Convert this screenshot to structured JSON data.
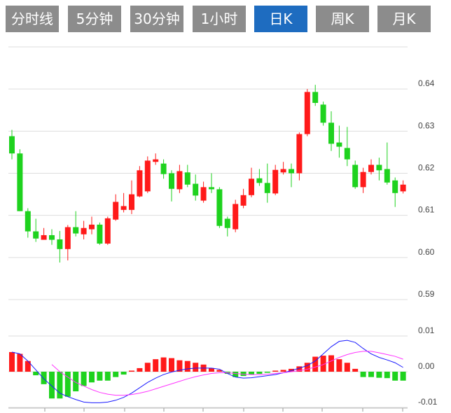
{
  "tabs": [
    "分时线",
    "5分钟",
    "30分钟",
    "1小时",
    "日K",
    "周K",
    "月K"
  ],
  "active_tab": 4,
  "chart_data": [
    {
      "type": "candlestick",
      "open": [
        0.6288,
        0.6247,
        0.611,
        0.6062,
        0.6042,
        0.6053,
        0.6043,
        0.602,
        0.6072,
        0.6055,
        0.6067,
        0.6078,
        0.6033,
        0.609,
        0.6113,
        0.6113,
        0.6145,
        0.6157,
        0.6227,
        0.6223,
        0.62,
        0.6162,
        0.6202,
        0.6175,
        0.6135,
        0.6167,
        0.6162,
        0.6092,
        0.6067,
        0.6123,
        0.6148,
        0.6188,
        0.6177,
        0.6152,
        0.6202,
        0.621,
        0.62,
        0.6293,
        0.6393,
        0.6363,
        0.632,
        0.6273,
        0.626,
        0.622,
        0.6167,
        0.6203,
        0.622,
        0.621,
        0.6183,
        0.6157
      ],
      "high": [
        0.6303,
        0.6257,
        0.6117,
        0.6092,
        0.607,
        0.6067,
        0.6063,
        0.6077,
        0.611,
        0.6087,
        0.6097,
        0.6083,
        0.6097,
        0.615,
        0.6153,
        0.6183,
        0.6217,
        0.624,
        0.6247,
        0.6233,
        0.6207,
        0.622,
        0.622,
        0.6197,
        0.618,
        0.62,
        0.6167,
        0.6097,
        0.6137,
        0.6163,
        0.6213,
        0.621,
        0.6223,
        0.622,
        0.6227,
        0.6223,
        0.6297,
        0.64,
        0.641,
        0.637,
        0.6347,
        0.6313,
        0.631,
        0.623,
        0.6213,
        0.6233,
        0.6237,
        0.6273,
        0.619,
        0.6183
      ],
      "low": [
        0.6233,
        0.611,
        0.6047,
        0.6037,
        0.6042,
        0.603,
        0.5988,
        0.5993,
        0.605,
        0.6043,
        0.6055,
        0.603,
        0.603,
        0.6087,
        0.6107,
        0.6103,
        0.6143,
        0.6153,
        0.622,
        0.6187,
        0.6133,
        0.6153,
        0.6167,
        0.6135,
        0.613,
        0.6153,
        0.607,
        0.605,
        0.606,
        0.6117,
        0.6143,
        0.617,
        0.613,
        0.6148,
        0.6197,
        0.6167,
        0.6183,
        0.6288,
        0.636,
        0.6313,
        0.6253,
        0.6237,
        0.6217,
        0.6163,
        0.6153,
        0.6197,
        0.6183,
        0.6173,
        0.612,
        0.6152
      ],
      "close": [
        0.6247,
        0.611,
        0.6062,
        0.6045,
        0.6053,
        0.6042,
        0.602,
        0.6072,
        0.6057,
        0.607,
        0.6078,
        0.6033,
        0.6093,
        0.6132,
        0.6122,
        0.615,
        0.6207,
        0.623,
        0.6233,
        0.6198,
        0.6163,
        0.6205,
        0.6173,
        0.6147,
        0.6167,
        0.6162,
        0.6075,
        0.607,
        0.6127,
        0.6148,
        0.6187,
        0.6177,
        0.6153,
        0.6208,
        0.621,
        0.62,
        0.6293,
        0.6393,
        0.6367,
        0.632,
        0.627,
        0.6263,
        0.6233,
        0.6167,
        0.6203,
        0.622,
        0.6207,
        0.6178,
        0.6153,
        0.6173
      ],
      "up_color": "#ff1a1a",
      "down_color": "#1ed21e",
      "ylim": [
        0.59,
        0.65
      ],
      "yticks": [
        0.59,
        {
          "value": 0.6,
          "label": "0.60"
        },
        0.61,
        0.62,
        0.63,
        0.64
      ],
      "grid": true
    },
    {
      "type": "macd",
      "bars": {
        "values": [
          0.0055,
          0.005,
          0.003,
          -0.001,
          -0.0035,
          -0.0075,
          -0.0075,
          -0.007,
          -0.0055,
          -0.004,
          -0.003,
          -0.0025,
          -0.0025,
          -0.0015,
          -0.0008,
          0.0003,
          0.001,
          0.0025,
          0.0035,
          0.004,
          0.0038,
          0.0032,
          0.003,
          0.0025,
          0.002,
          0.001,
          0.0005,
          -0.0006,
          -0.0015,
          -0.0012,
          -0.0008,
          -0.0006,
          -0.0003,
          0.0003,
          0.0005,
          0.0008,
          0.0015,
          0.0025,
          0.0042,
          0.0045,
          0.0046,
          0.0035,
          0.0025,
          0.0008,
          -0.0015,
          -0.0015,
          -0.0017,
          -0.0018,
          -0.0025,
          -0.0025
        ],
        "up_color": "#ff1a1a",
        "down_color": "#1ed21e"
      },
      "series": [
        {
          "color": "#1a1aff",
          "values": [
            0.0055,
            0.005,
            0.003,
            0.0005,
            -0.002,
            -0.004,
            -0.006,
            -0.007,
            -0.0078,
            -0.0085,
            -0.0087,
            -0.0087,
            -0.0085,
            -0.008,
            -0.0072,
            -0.006,
            -0.0045,
            -0.003,
            -0.0018,
            -0.0008,
            -0.0001,
            0.0004,
            0.0008,
            0.001,
            0.001,
            0.001,
            0.0007,
            -0.0005,
            -0.0015,
            -0.0018,
            -0.0017,
            -0.0014,
            -0.0011,
            -0.0008,
            -0.0003,
            0.0003,
            0.001,
            0.0017,
            0.003,
            0.005,
            0.007,
            0.0085,
            0.0088,
            0.0082,
            0.0065,
            0.005,
            0.004,
            0.0033,
            0.0025,
            0.0012
          ]
        },
        {
          "color": "#ff33ff",
          "values": [
            null,
            null,
            null,
            null,
            null,
            0.002,
            0,
            -0.0015,
            -0.003,
            -0.004,
            -0.005,
            -0.0058,
            -0.0063,
            -0.0066,
            -0.0066,
            -0.0064,
            -0.006,
            -0.0055,
            -0.0048,
            -0.0041,
            -0.0034,
            -0.0027,
            -0.002,
            -0.0014,
            -0.0009,
            -0.0005,
            -0.0003,
            -0.0003,
            -0.0005,
            -0.0007,
            -0.0008,
            -0.0008,
            -0.0007,
            -0.0005,
            -0.0003,
            0,
            0.0003,
            0.0007,
            0.0013,
            0.002,
            0.003,
            0.004,
            0.0048,
            0.0054,
            0.0057,
            0.0057,
            0.0053,
            0.0048,
            0.0043,
            0.0035
          ]
        }
      ],
      "ylim": [
        -0.01,
        0.01
      ],
      "yticks": [
        0.01,
        {
          "value": 0,
          "label": "0.00"
        },
        -0.01
      ],
      "grid": true
    }
  ]
}
